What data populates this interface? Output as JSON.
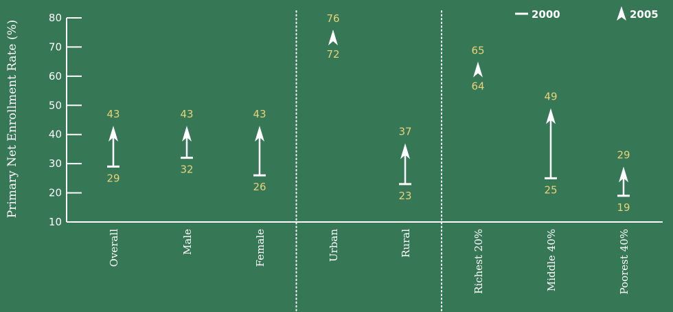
{
  "chart_data": {
    "type": "range-arrow",
    "ylabel": "Primary Net Enrollment Rate (%)",
    "ylim": [
      10,
      80
    ],
    "yticks": [
      10,
      20,
      30,
      40,
      50,
      60,
      70,
      80
    ],
    "categories": [
      "Overall",
      "Male",
      "Female",
      "Urban",
      "Rural",
      "Richest 20%",
      "Middle 40%",
      "Poorest 40%"
    ],
    "groups": [
      [
        "Overall",
        "Male",
        "Female"
      ],
      [
        "Urban",
        "Rural"
      ],
      [
        "Richest 20%",
        "Middle 40%",
        "Poorest 40%"
      ]
    ],
    "series": [
      {
        "name": "2000",
        "values": [
          29,
          32,
          26,
          72,
          23,
          64,
          25,
          19
        ]
      },
      {
        "name": "2005",
        "values": [
          43,
          43,
          43,
          76,
          37,
          65,
          49,
          29
        ]
      }
    ],
    "legend": {
      "position": "top-right"
    },
    "colors": {
      "background": "#367755",
      "axis": "#ffffff",
      "value_label": "#e8d27a"
    }
  }
}
